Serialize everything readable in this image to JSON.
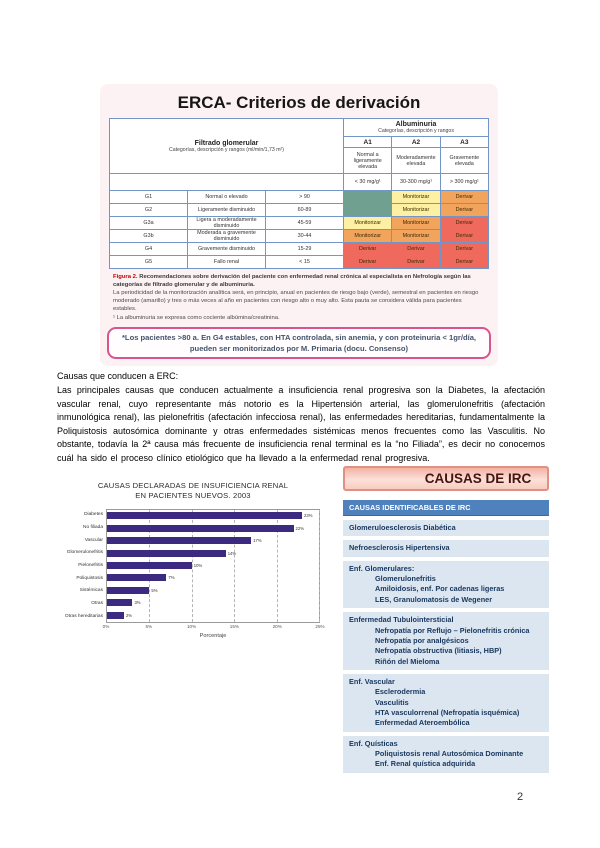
{
  "page": {
    "number": "2"
  },
  "colors": {
    "risk": {
      "green": "#70a090",
      "yellow": "#fdf0a2",
      "orange": "#f2a45c",
      "red": "#ef6a5c"
    },
    "bar": "#3b2a80",
    "irc_header_blue": "#4f81bd",
    "irc_section_bg": "#dce6f1",
    "note_border": "#d9538c",
    "caption_red": "#c00000"
  },
  "derivation_panel": {
    "title": "ERCA- Criterios de derivación",
    "table": {
      "gfr_header": {
        "title": "Filtrado glomerular",
        "subtitle": "Categorías, descripción y rangos (ml/min/1,73 m²)"
      },
      "albuminuria_header": {
        "title": "Albuminuria",
        "subtitle": "Categorías, descripción y rangos"
      },
      "albuminuria_columns": [
        {
          "code": "A1",
          "description": "Normal a ligeramente elevada",
          "range": "< 30 mg/g¹"
        },
        {
          "code": "A2",
          "description": "Moderadamente elevada",
          "range": "30-300 mg/g¹"
        },
        {
          "code": "A3",
          "description": "Gravemente elevada",
          "range": "> 300 mg/g¹"
        }
      ],
      "rows": [
        {
          "code": "G1",
          "description": "Normal o elevado",
          "range": "> 90",
          "cells": [
            {
              "label": "",
              "color": "green"
            },
            {
              "label": "Monitorizar",
              "color": "yellow"
            },
            {
              "label": "Derivar",
              "color": "orange"
            }
          ]
        },
        {
          "code": "G2",
          "description": "Ligeramente disminuido",
          "range": "60-89",
          "cells": [
            {
              "label": "",
              "color": "green"
            },
            {
              "label": "Monitorizar",
              "color": "yellow"
            },
            {
              "label": "Derivar",
              "color": "orange"
            }
          ]
        },
        {
          "code": "G3a",
          "description": "Ligera a moderadamente disminuido",
          "range": "45-59",
          "cells": [
            {
              "label": "Monitorizar",
              "color": "yellow"
            },
            {
              "label": "Monitorizar",
              "color": "orange"
            },
            {
              "label": "Derivar",
              "color": "red"
            }
          ]
        },
        {
          "code": "G3b",
          "description": "Moderada a gravemente disminuido",
          "range": "30-44",
          "cells": [
            {
              "label": "Monitorizar",
              "color": "orange"
            },
            {
              "label": "Monitorizar",
              "color": "orange"
            },
            {
              "label": "Derivar",
              "color": "red"
            }
          ]
        },
        {
          "code": "G4",
          "description": "Gravemente disminuido",
          "range": "15-29",
          "cells": [
            {
              "label": "Derivar",
              "color": "red"
            },
            {
              "label": "Derivar",
              "color": "red"
            },
            {
              "label": "Derivar",
              "color": "red"
            }
          ]
        },
        {
          "code": "G5",
          "description": "Fallo renal",
          "range": "< 15",
          "cells": [
            {
              "label": "Derivar",
              "color": "red"
            },
            {
              "label": "Derivar",
              "color": "red"
            },
            {
              "label": "Derivar",
              "color": "red"
            }
          ]
        }
      ]
    },
    "caption": {
      "fig_label": "Figura 2.",
      "bold_text": "Recomendaciones sobre derivación del paciente con enfermedad renal crónica al especialista en Nefrología según las categorías de filtrado glomerular y de albuminuria.",
      "body_text": "La periodicidad de la monitorización analítica será, en principio, anual en pacientes de riesgo bajo (verde), semestral en pacientes en riesgo moderado (amarillo) y tres o más veces al año en pacientes con riesgo alto o muy alto. Esta pauta se considera válida para pacientes estables.",
      "footnote": "¹ La albuminuria se expresa como cociente albúmina/creatinina."
    },
    "note": "*Los pacientes >80 a. En G4 estables, con HTA controlada, sin anemia, y con proteinuria < 1gr/día, pueden ser monitorizados por M. Primaria (docu. Consenso)"
  },
  "body": {
    "heading": "Causas que conducen a ERC:",
    "paragraph": "Las principales causas que conducen actualmente a insuficiencia renal progresiva son la Diabetes, la afectación vascular renal, cuyo representante más notorio es la Hipertensión arterial, las glomerulonefritis (afectación inmunológica renal), las pielonefritis (afectación infecciosa renal), las enfermedades hereditarias, fundamentalmente la Poliquistosis autosómica dominante y otras enfermedades sistémicas menos frecuentes como las Vasculitis. No obstante, todavía la 2ª causa más frecuente de insuficiencia renal terminal es la “no Filiada”, es decir no conocemos cuál ha sido el proceso clínico etiológico que ha llevado a la enfermedad renal progresiva."
  },
  "chart_data": {
    "type": "bar",
    "orientation": "horizontal",
    "title": "CAUSAS DECLARADAS DE INSUFICIENCIA RENAL EN PACIENTES NUEVOS. 2003",
    "categories": [
      "Diabetes",
      "No filiada",
      "Vascular",
      "Glomerulonefritis",
      "Pielonefritis",
      "Poliquistosis",
      "Sistémicas",
      "Otras",
      "Otras hereditarias"
    ],
    "values": [
      23,
      22,
      17,
      14,
      10,
      7,
      5,
      3,
      2
    ],
    "value_labels": [
      "23%",
      "22%",
      "17%",
      "14%",
      "10%",
      "7%",
      "5%",
      "3%",
      "2%"
    ],
    "xlabel": "Porcentaje",
    "xlim": [
      0,
      25
    ],
    "xticks": [
      "0%",
      "5%",
      "10%",
      "15%",
      "20%",
      "25%"
    ],
    "grid": "vertical-dashed",
    "legend": "none",
    "bar_color": "#3b2a80"
  },
  "irc_panel": {
    "title": "CAUSAS DE IRC",
    "header": "CAUSAS IDENTIFICABLES DE IRC",
    "sections": [
      {
        "title": "Glomeruloesclerosis Diabética",
        "items": []
      },
      {
        "title": "Nefroesclerosis Hipertensiva",
        "items": []
      },
      {
        "title": "Enf. Glomerulares:",
        "items": [
          "Glomerulonefritis",
          "Amiloidosis, enf. Por cadenas ligeras",
          "LES, Granulomatosis de Wegener"
        ]
      },
      {
        "title": "Enfermedad Tubulointersticial",
        "items": [
          "Nefropatía por Reflujo – Pielonefritis crónica",
          "Nefropatía por analgésicos",
          "Nefropatía obstructiva (litiasis, HBP)",
          "Riñón del Mieloma"
        ]
      },
      {
        "title": "Enf. Vascular",
        "items": [
          "Esclerodermia",
          "Vasculitis",
          "HTA vasculorrenal (Nefropatía isquémica)",
          "Enfermedad Ateroembólica"
        ]
      },
      {
        "title": "Enf. Quísticas",
        "items": [
          "Poliquistosis renal Autosómica Dominante",
          "Enf. Renal quística adquirida"
        ]
      }
    ]
  }
}
